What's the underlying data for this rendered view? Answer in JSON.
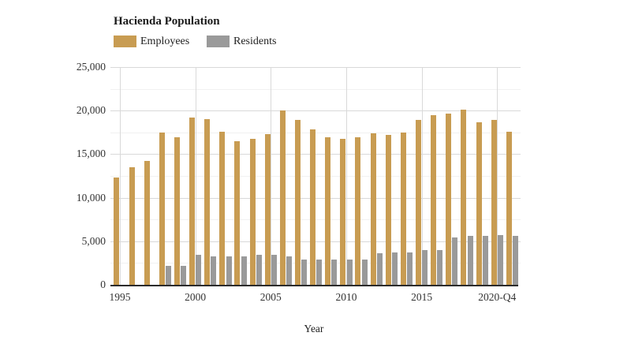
{
  "title": "Hacienda Population",
  "legend": [
    {
      "label": "Employees",
      "color": "#C89C52"
    },
    {
      "label": "Residents",
      "color": "#9A9A9A"
    }
  ],
  "colors": {
    "employees": "#C89C52",
    "residents": "#9A9A9A",
    "grid_major": "#d9d9d9",
    "grid_minor": "#f1f1f1",
    "axis": "#2b2b2b",
    "text": "#333333"
  },
  "chart_data": {
    "type": "bar",
    "title": "Hacienda Population",
    "xlabel": "Year",
    "ylabel": "",
    "ylim": [
      0,
      25000
    ],
    "y_ticks": [
      0,
      5000,
      10000,
      15000,
      20000,
      25000
    ],
    "minor_grid_step": 2500,
    "grid": true,
    "legend_position": "top-left",
    "categories": [
      "1995",
      "1996",
      "1997",
      "1998",
      "1999",
      "2000",
      "2001",
      "2002",
      "2003",
      "2004",
      "2005",
      "2006",
      "2007",
      "2008",
      "2009",
      "2010",
      "2011",
      "2012",
      "2013",
      "2014",
      "2015",
      "2016",
      "2017",
      "2018",
      "2019",
      "2020",
      "2021"
    ],
    "x_tick_labels": [
      "1995",
      "2000",
      "2005",
      "2010",
      "2015",
      "2020-Q4"
    ],
    "x_tick_indices": [
      0,
      5,
      10,
      15,
      20,
      25
    ],
    "series": [
      {
        "name": "Employees",
        "color": "#C89C52",
        "values": [
          12300,
          13500,
          14200,
          17500,
          16900,
          19200,
          19000,
          17600,
          16500,
          16800,
          17300,
          20000,
          18900,
          17800,
          16900,
          16800,
          16900,
          17400,
          17200,
          17500,
          18900,
          19500,
          19700,
          20100,
          18700,
          18900,
          17600
        ]
      },
      {
        "name": "Residents",
        "color": "#9A9A9A",
        "values": [
          null,
          null,
          null,
          2200,
          2200,
          3400,
          3300,
          3300,
          3300,
          3400,
          3400,
          3300,
          2900,
          2900,
          2900,
          2900,
          2900,
          3600,
          3700,
          3700,
          4000,
          4000,
          5400,
          5600,
          5600,
          5700,
          5600
        ]
      }
    ]
  }
}
